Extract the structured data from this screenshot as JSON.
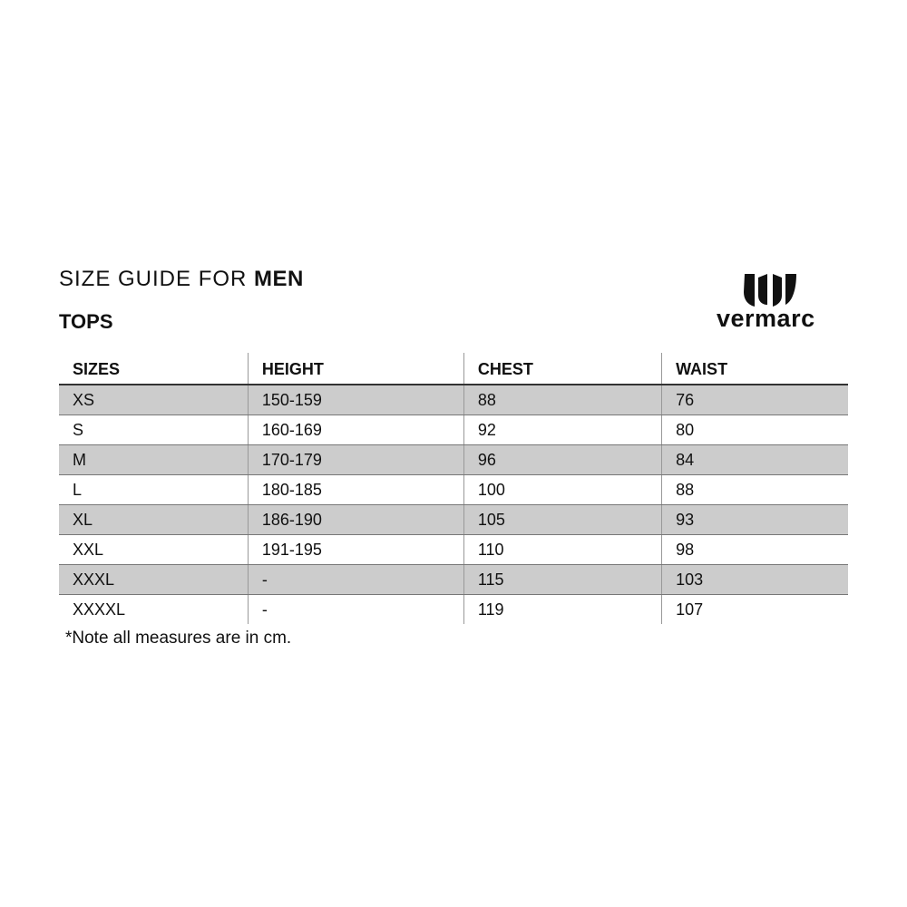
{
  "header": {
    "title_prefix": "SIZE GUIDE FOR",
    "title_bold": "MEN",
    "section": "TOPS"
  },
  "logo": {
    "text": "vermarc"
  },
  "table": {
    "columns": [
      "SIZES",
      "HEIGHT",
      "CHEST",
      "WAIST"
    ],
    "rows": [
      [
        "XS",
        "150-159",
        "88",
        "76"
      ],
      [
        "S",
        "160-169",
        "92",
        "80"
      ],
      [
        "M",
        "170-179",
        "96",
        "84"
      ],
      [
        "L",
        "180-185",
        "100",
        "88"
      ],
      [
        "XL",
        "186-190",
        "105",
        "93"
      ],
      [
        "XXL",
        "191-195",
        "110",
        "98"
      ],
      [
        "XXXL",
        "-",
        "115",
        "103"
      ],
      [
        "XXXXL",
        "-",
        "119",
        "107"
      ]
    ]
  },
  "note": "*Note all measures are in cm.",
  "colors": {
    "stripe": "#cccccc",
    "text": "#111111"
  }
}
